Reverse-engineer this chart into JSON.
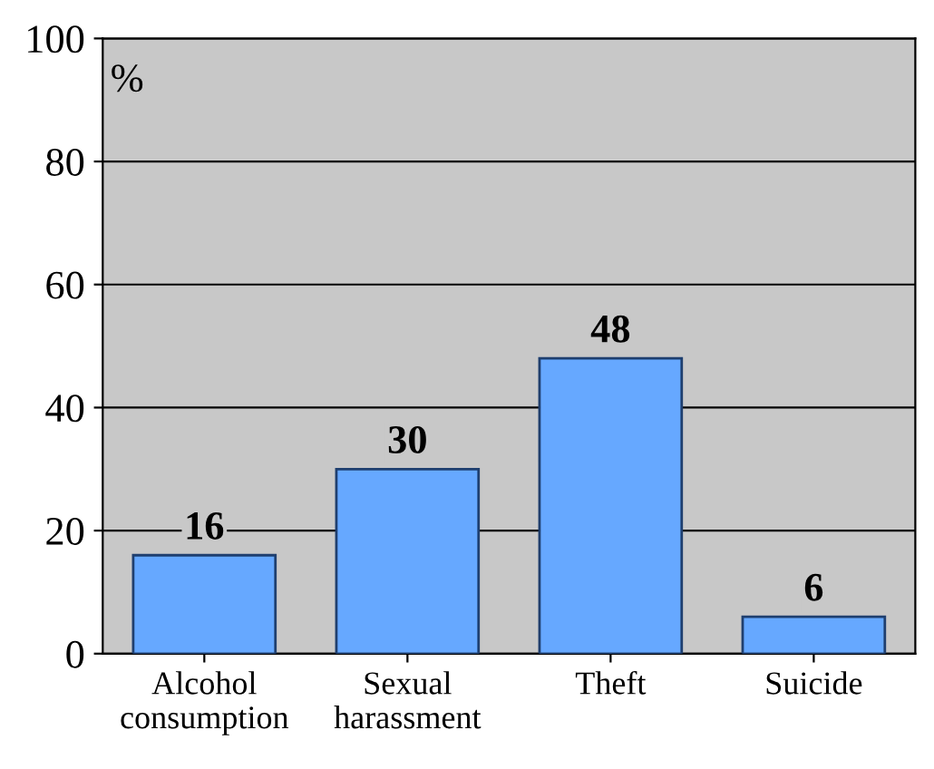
{
  "chart_data": {
    "type": "bar",
    "ylabel": "%",
    "categories": [
      "Alcohol\nconsumption",
      "Sexual\nharassment",
      "Theft",
      "Suicide"
    ],
    "values": [
      16,
      30,
      48,
      6
    ],
    "color": "#66a8ff",
    "ylim": [
      0,
      100
    ],
    "yticks": [
      0,
      20,
      40,
      60,
      80,
      100
    ],
    "grid": "y",
    "data_labels": true
  }
}
